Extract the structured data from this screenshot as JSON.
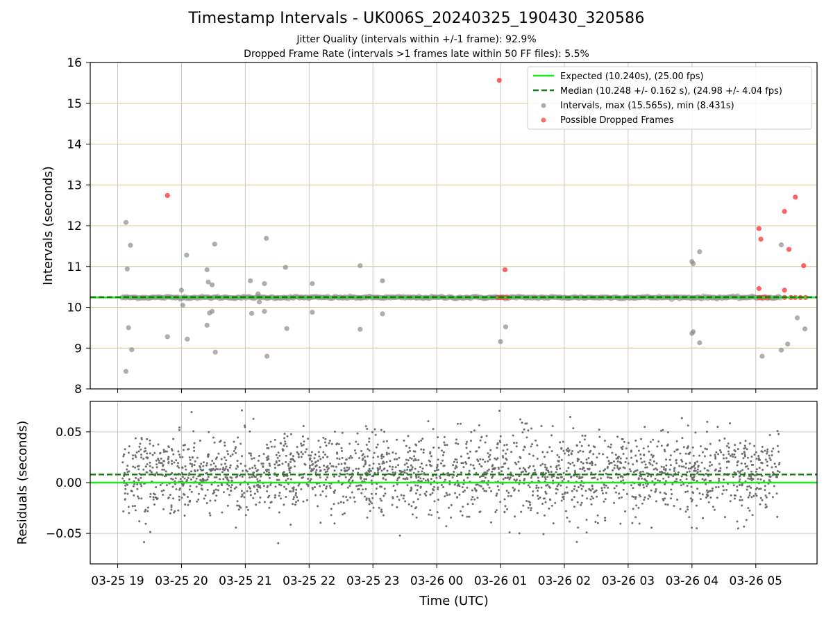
{
  "header": {
    "title": "Timestamp Intervals - UK006S_20240325_190430_320586",
    "subtitle1": "Jitter Quality (intervals within +/-1 frame): 92.9%",
    "subtitle2": "Dropped Frame Rate (intervals >1 frames late within 50 FF files): 5.5%"
  },
  "chart_data": [
    {
      "type": "scatter",
      "title": "Timestamp Intervals - UK006S_20240325_190430_320586",
      "xlabel": "",
      "ylabel": "Intervals (seconds)",
      "xlim": [
        -0.43,
        10.96
      ],
      "ylim": [
        8,
        16
      ],
      "yticks": [
        8,
        9,
        10,
        11,
        12,
        13,
        14,
        15,
        16
      ],
      "x_units": "hours since 2024-03-25 19:00 UTC",
      "x_tick_positions": [
        0,
        1,
        2,
        3,
        4,
        5,
        6,
        7,
        8,
        9,
        10
      ],
      "grid": true,
      "legend_position": "top-right",
      "expected_interval": 10.24,
      "median_interval": 10.248,
      "legend": [
        "Expected (10.240s), (25.00 fps)",
        "Median (10.248 +/- 0.162 s), (24.98 +/- 4.04 fps)",
        "Intervals, max (15.565s), min (8.431s)",
        "Possible Dropped Frames"
      ],
      "series": [
        {
          "name": "Intervals",
          "color": "#8c8c8c",
          "range_x": [
            0.07,
            10.38
          ],
          "typical_y": 10.24,
          "outliers": [
            [
              0.13,
              12.08
            ],
            [
              0.15,
              10.94
            ],
            [
              0.2,
              11.52
            ],
            [
              0.13,
              8.43
            ],
            [
              0.17,
              9.5
            ],
            [
              0.22,
              8.96
            ],
            [
              0.78,
              9.28
            ],
            [
              1.0,
              10.42
            ],
            [
              1.02,
              10.05
            ],
            [
              1.08,
              11.28
            ],
            [
              1.09,
              9.22
            ],
            [
              1.4,
              10.92
            ],
            [
              1.42,
              10.62
            ],
            [
              1.48,
              10.55
            ],
            [
              1.52,
              11.55
            ],
            [
              1.4,
              9.56
            ],
            [
              1.44,
              9.86
            ],
            [
              1.48,
              9.9
            ],
            [
              1.53,
              8.9
            ],
            [
              2.08,
              10.65
            ],
            [
              2.1,
              9.85
            ],
            [
              2.2,
              10.33
            ],
            [
              2.22,
              10.13
            ],
            [
              2.3,
              10.58
            ],
            [
              2.33,
              11.69
            ],
            [
              2.3,
              9.9
            ],
            [
              2.34,
              8.8
            ],
            [
              2.63,
              10.98
            ],
            [
              2.65,
              9.48
            ],
            [
              3.05,
              10.58
            ],
            [
              3.05,
              9.88
            ],
            [
              3.8,
              11.02
            ],
            [
              3.8,
              9.46
            ],
            [
              4.15,
              10.65
            ],
            [
              4.15,
              9.84
            ],
            [
              6.0,
              9.16
            ],
            [
              6.08,
              9.52
            ],
            [
              9.0,
              11.12
            ],
            [
              9.02,
              11.07
            ],
            [
              9.12,
              11.36
            ],
            [
              9.0,
              9.36
            ],
            [
              9.02,
              9.4
            ],
            [
              9.12,
              9.13
            ],
            [
              10.1,
              8.8
            ],
            [
              10.5,
              9.1
            ],
            [
              10.65,
              9.74
            ],
            [
              10.77,
              9.47
            ],
            [
              10.4,
              8.95
            ],
            [
              10.4,
              11.53
            ]
          ]
        },
        {
          "name": "Possible Dropped Frames",
          "color": "#ff3b3b",
          "points": [
            [
              0.78,
              12.74
            ],
            [
              5.98,
              15.565
            ],
            [
              6.07,
              10.92
            ],
            [
              5.95,
              10.24
            ],
            [
              6.0,
              10.24
            ],
            [
              6.05,
              10.24
            ],
            [
              6.1,
              10.24
            ],
            [
              10.05,
              11.93
            ],
            [
              10.08,
              11.67
            ],
            [
              10.05,
              10.46
            ],
            [
              10.05,
              10.24
            ],
            [
              10.1,
              10.24
            ],
            [
              10.15,
              10.24
            ],
            [
              10.2,
              10.24
            ],
            [
              10.45,
              12.35
            ],
            [
              10.62,
              12.7
            ],
            [
              10.52,
              11.42
            ],
            [
              10.75,
              11.02
            ],
            [
              10.45,
              10.42
            ],
            [
              10.45,
              10.24
            ],
            [
              10.55,
              10.24
            ],
            [
              10.62,
              10.24
            ],
            [
              10.7,
              10.24
            ],
            [
              10.78,
              10.24
            ]
          ]
        }
      ]
    },
    {
      "type": "scatter",
      "title": "",
      "xlabel": "Time (UTC)",
      "ylabel": "Residuals (seconds)",
      "xlim": [
        -0.43,
        10.96
      ],
      "ylim": [
        -0.08,
        0.08
      ],
      "yticks": [
        -0.05,
        0.0,
        0.05
      ],
      "ytick_labels": [
        "−0.05",
        "0.00",
        "0.05"
      ],
      "x_tick_labels": [
        "03-25 19",
        "03-25 20",
        "03-25 21",
        "03-25 22",
        "03-25 23",
        "03-26 00",
        "03-26 01",
        "03-26 02",
        "03-26 03",
        "03-26 04",
        "03-26 05"
      ],
      "x_tick_positions": [
        0,
        1,
        2,
        3,
        4,
        5,
        6,
        7,
        8,
        9,
        10
      ],
      "grid": true,
      "series": [
        {
          "name": "Residuals",
          "color": "#6e6e6e",
          "range_x": [
            0.07,
            10.38
          ],
          "mean": 0.008,
          "spread": 0.02,
          "min": -0.066,
          "max": 0.076
        },
        {
          "name": "Expected",
          "color": "#1ee51e",
          "value": 0.0
        },
        {
          "name": "Median",
          "color": "#1a7f1a",
          "value": 0.008
        }
      ]
    }
  ],
  "colors": {
    "expected_line": "#1ee51e",
    "median_line": "#157a15",
    "interval_points": "#8c8c8c",
    "dropped_points": "#ff3b3b",
    "hgrid": "#d9c48a",
    "vgrid": "#c7c7c7",
    "residual_points": "#6e6e6e"
  }
}
